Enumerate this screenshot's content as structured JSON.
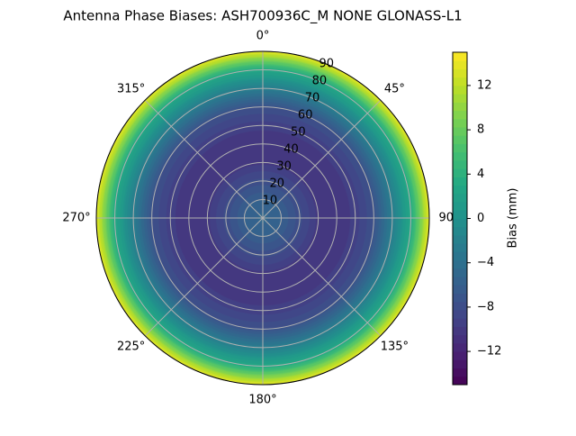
{
  "chart_data": {
    "type": "polar-contour",
    "title": "Antenna Phase Biases: ASH700936C_M    NONE GLONASS-L1",
    "r": [
      0,
      10,
      20,
      30,
      40,
      50,
      60,
      70,
      80,
      90
    ],
    "bias": [
      -5,
      -6,
      -8,
      -10,
      -10.5,
      -9.5,
      -7.5,
      -2.5,
      3,
      14
    ],
    "rlim": [
      0,
      90
    ],
    "rticks": [
      10,
      20,
      30,
      40,
      50,
      60,
      70,
      80,
      90
    ],
    "thetaticks": [
      {
        "value": 0,
        "label": "0°"
      },
      {
        "value": 45,
        "label": "45°"
      },
      {
        "value": 90,
        "label": "90°"
      },
      {
        "value": 135,
        "label": "135°"
      },
      {
        "value": 180,
        "label": "180°"
      },
      {
        "value": 225,
        "label": "225°"
      },
      {
        "value": 270,
        "label": "270°"
      },
      {
        "value": 315,
        "label": "315°"
      }
    ],
    "colormap": "viridis",
    "colorbar_label": "Bias (mm)",
    "clim": [
      -15,
      15
    ],
    "cticks": [
      {
        "value": -12,
        "label": "−12"
      },
      {
        "value": -8,
        "label": "−8"
      },
      {
        "value": -4,
        "label": "−4"
      },
      0,
      4,
      8,
      12
    ],
    "grid": true
  }
}
